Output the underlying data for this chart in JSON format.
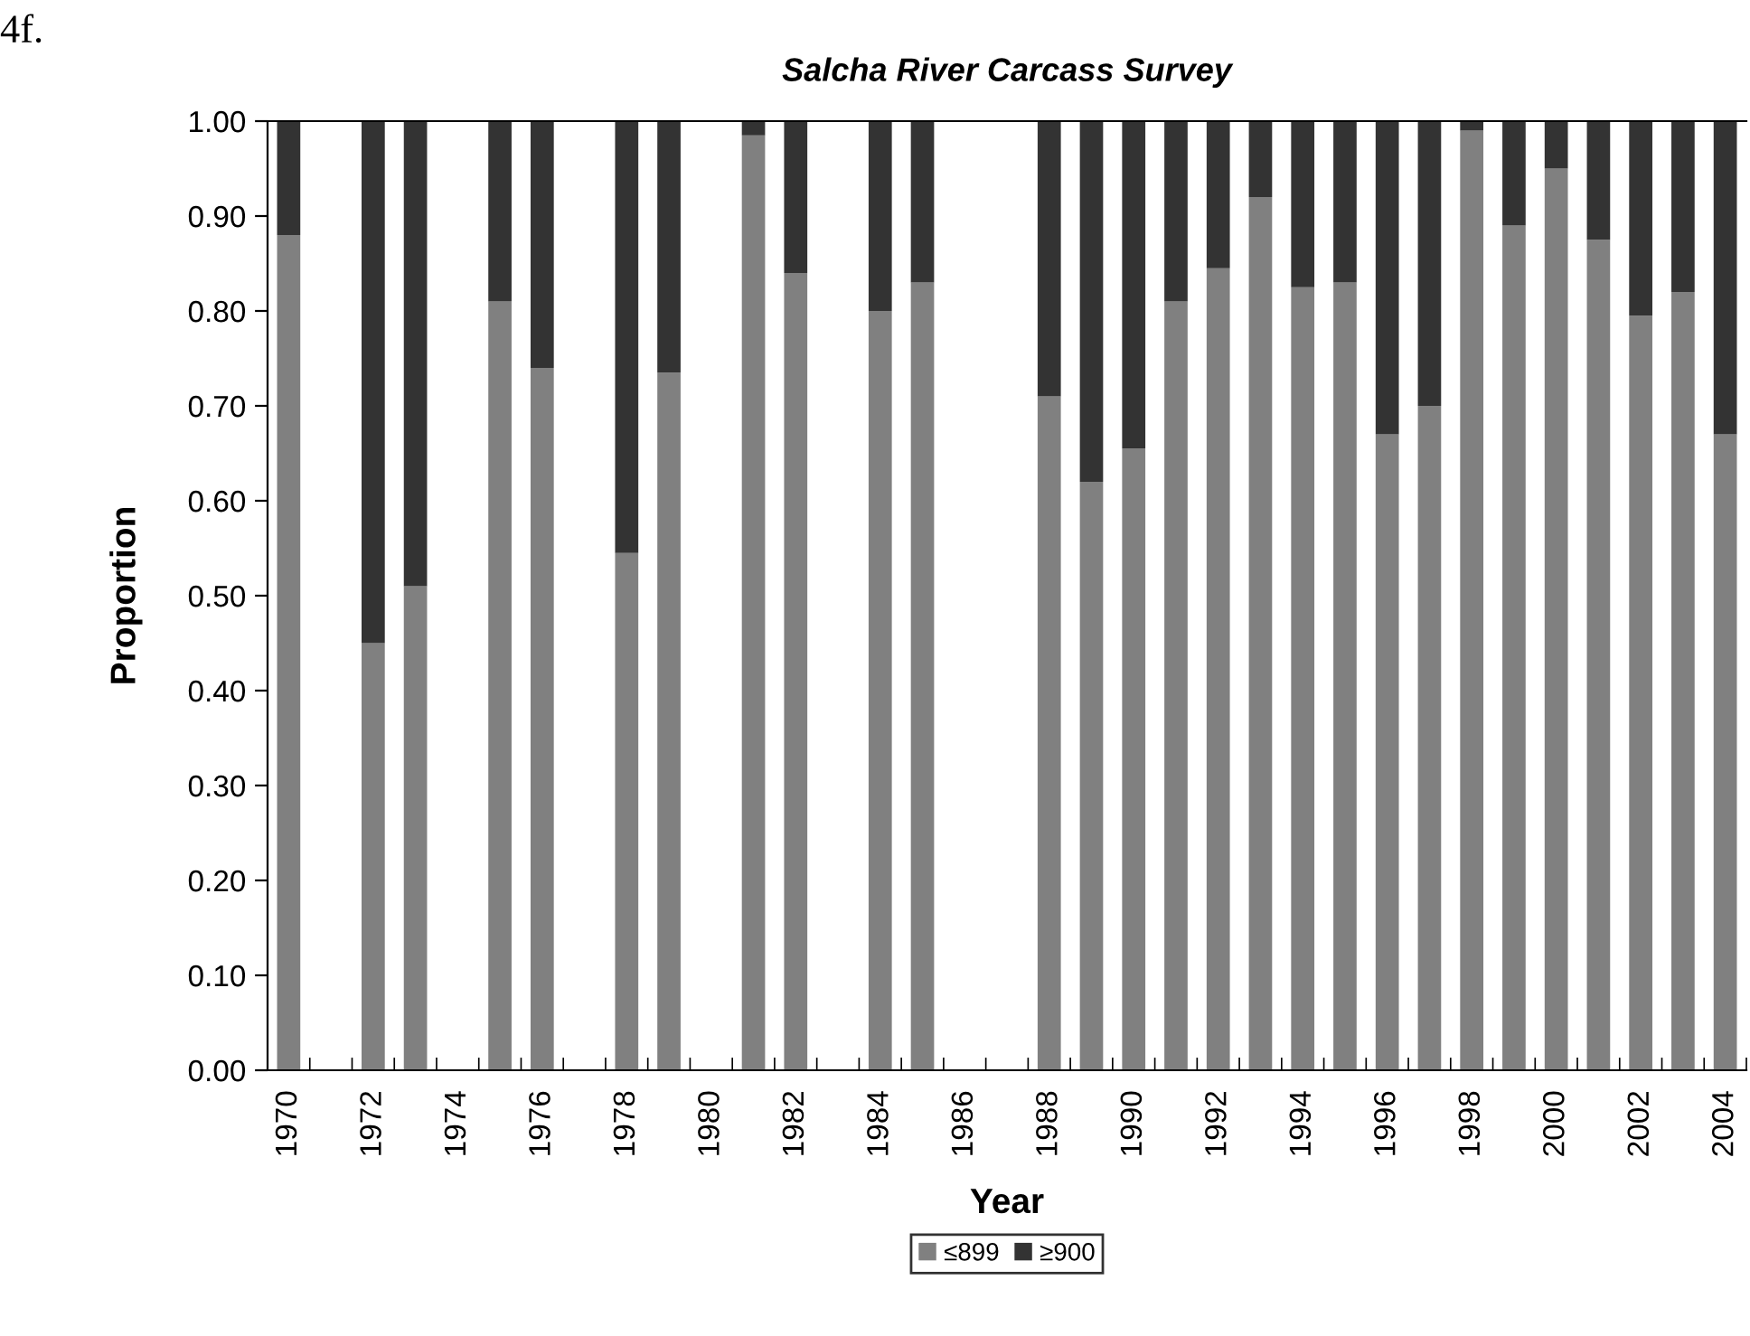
{
  "chart_data": {
    "type": "bar",
    "stacked": true,
    "title": "Salcha River Carcass Survey",
    "xlabel": "Year",
    "ylabel": "Proportion",
    "annotations": [
      "4f."
    ],
    "categories": [
      "1970",
      null,
      "1972",
      null,
      "1974",
      null,
      "1976",
      null,
      "1978",
      null,
      "1980",
      null,
      "1982",
      null,
      "1984",
      null,
      "1986",
      null,
      "1988",
      null,
      "1990",
      null,
      "1992",
      null,
      "1994",
      null,
      "1996",
      null,
      "1998",
      null,
      "2000",
      null,
      "2002",
      null,
      "2004"
    ],
    "series": [
      {
        "name": "≤899",
        "color": "#808080",
        "values": [
          0.88,
          null,
          0.45,
          0.51,
          null,
          0.81,
          0.74,
          null,
          0.545,
          0.735,
          null,
          0.985,
          0.84,
          null,
          0.8,
          0.83,
          null,
          null,
          0.71,
          0.62,
          0.655,
          0.81,
          0.845,
          0.92,
          0.825,
          0.83,
          0.67,
          0.7,
          0.99,
          0.89,
          0.95,
          0.875,
          0.795,
          0.82,
          0.67
        ]
      },
      {
        "name": "≥900",
        "color": "#333333",
        "values": [
          0.12,
          null,
          0.55,
          0.49,
          null,
          0.19,
          0.26,
          null,
          0.455,
          0.265,
          null,
          0.015,
          0.16,
          null,
          0.2,
          0.17,
          null,
          null,
          0.29,
          0.38,
          0.345,
          0.19,
          0.155,
          0.08,
          0.175,
          0.17,
          0.33,
          0.3,
          0.01,
          0.11,
          0.05,
          0.125,
          0.205,
          0.18,
          0.33
        ]
      }
    ],
    "ylim": [
      0,
      1
    ],
    "yticks": [
      {
        "value": 0,
        "label": "0.00"
      },
      {
        "value": 0.1,
        "label": "0.10"
      },
      {
        "value": 0.2,
        "label": "0.20"
      },
      {
        "value": 0.3,
        "label": "0.30"
      },
      {
        "value": 0.4,
        "label": "0.40"
      },
      {
        "value": 0.5,
        "label": "0.50"
      },
      {
        "value": 0.6,
        "label": "0.60"
      },
      {
        "value": 0.7,
        "label": "0.70"
      },
      {
        "value": 0.8,
        "label": "0.80"
      },
      {
        "value": 0.9,
        "label": "0.90"
      },
      {
        "value": 1,
        "label": "1.00"
      }
    ],
    "grid": false,
    "legend": "bottom"
  }
}
